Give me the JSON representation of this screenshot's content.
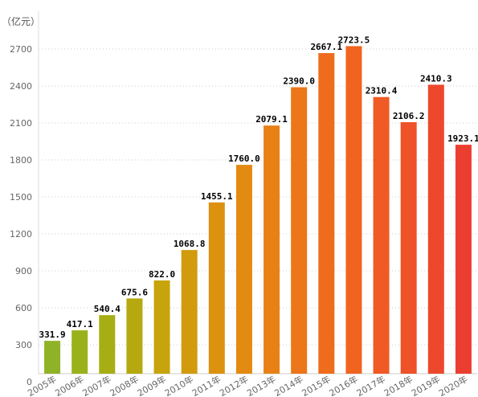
{
  "chart_data": {
    "type": "bar",
    "unit_label": "（亿元）",
    "categories": [
      "2005年",
      "2006年",
      "2007年",
      "2008年",
      "2009年",
      "2010年",
      "2011年",
      "2012年",
      "2013年",
      "2014年",
      "2015年",
      "2016年",
      "2017年",
      "2018年",
      "2019年",
      "2020年"
    ],
    "values": [
      331.9,
      417.1,
      540.4,
      675.6,
      822.0,
      1068.8,
      1455.1,
      1760.0,
      2079.1,
      2390.0,
      2667.1,
      2723.5,
      2310.4,
      2106.2,
      2410.3,
      1923.1
    ],
    "value_labels": [
      "331.9",
      "417.1",
      "540.4",
      "675.6",
      "822.0",
      "1068.8",
      "1455.1",
      "1760.0",
      "2079.1",
      "2390.0",
      "2667.1",
      "2723.5",
      "2310.4",
      "2106.2",
      "2410.3",
      "1923.1"
    ],
    "yticks": [
      "0",
      "300",
      "600",
      "900",
      "1200",
      "1500",
      "1800",
      "2100",
      "2400",
      "2700"
    ],
    "ylim": [
      0,
      2850
    ],
    "grid": true,
    "bar_colors": [
      "#8fb327",
      "#9ab11c",
      "#a6ae14",
      "#b5a90f",
      "#c7a40c",
      "#d29a0d",
      "#dc920f",
      "#e38a12",
      "#e88016",
      "#ec7619",
      "#ef6c1d",
      "#f06420",
      "#f05a24",
      "#ef5128",
      "#ee482c",
      "#ec3e30"
    ]
  }
}
